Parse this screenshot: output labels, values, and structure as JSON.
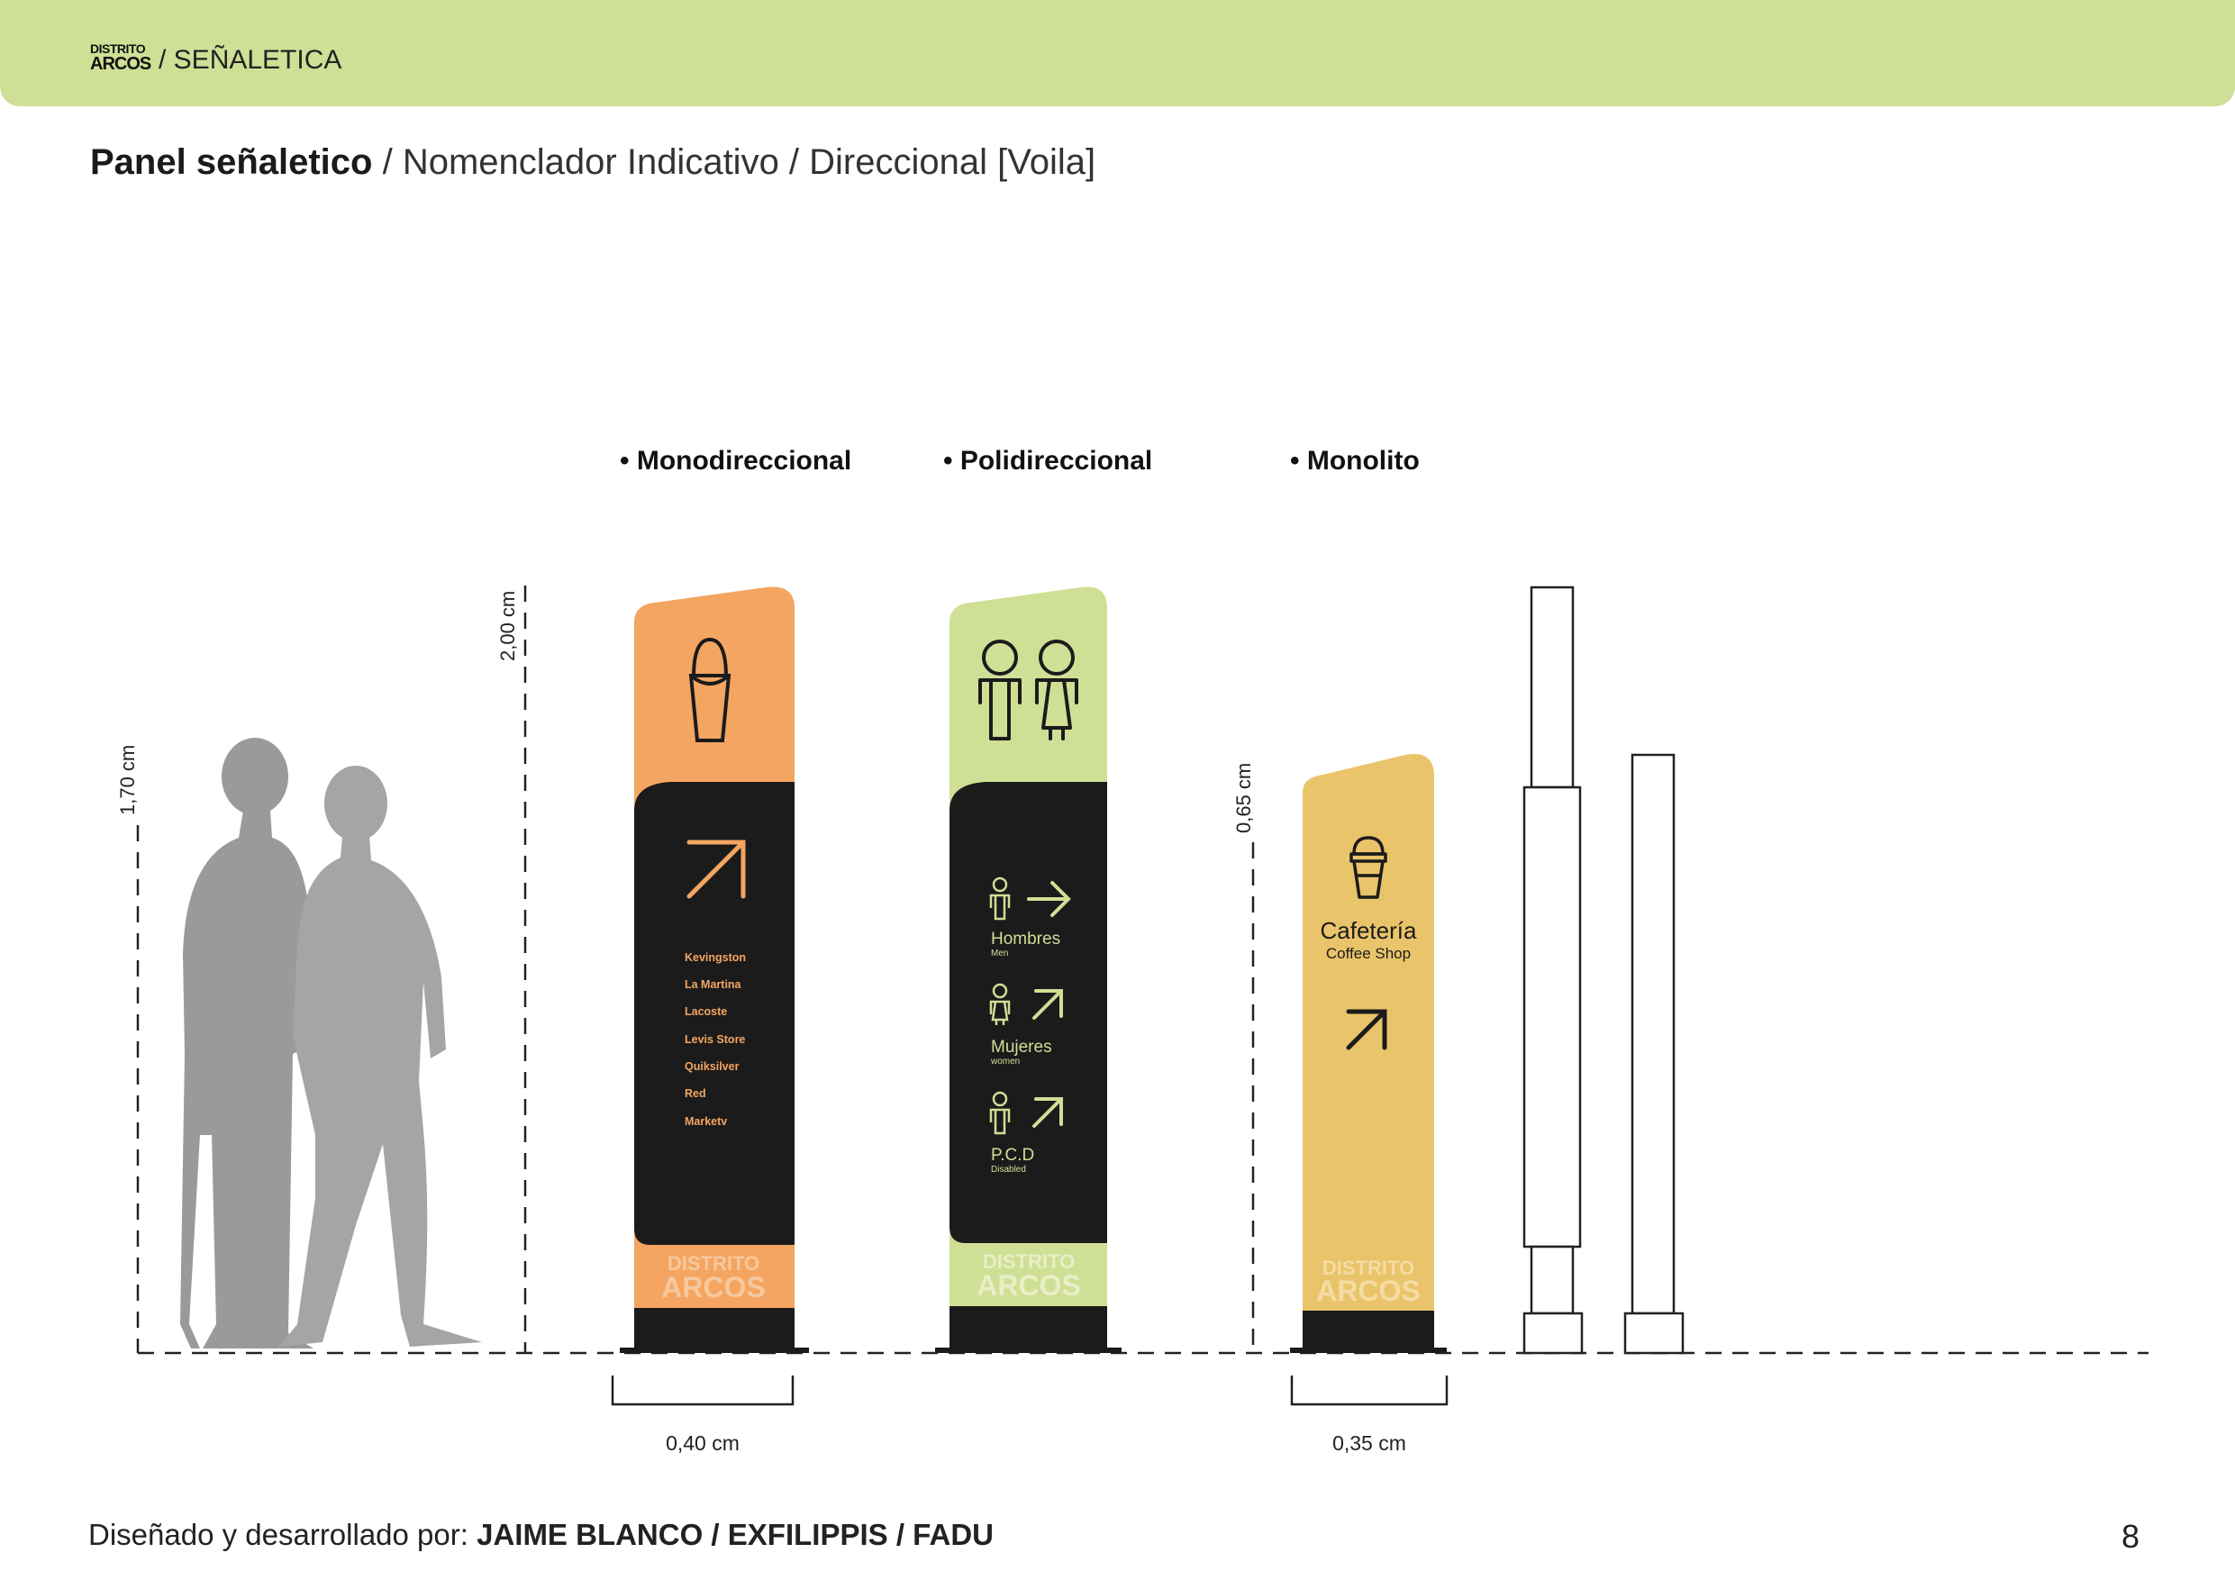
{
  "header": {
    "logo_line1": "DISTRITO",
    "logo_line2": "ARCOS",
    "breadcrumb": "/ SEÑALETICA",
    "bar_color": "#cfdf95"
  },
  "title": {
    "bold": "Panel señaletico",
    "rest": " / Nomenclador Indicativo / Direccional [Voila]"
  },
  "types": {
    "mono": "• Monodireccional",
    "poli": "• Polidireccional",
    "monolito": "• Monolito"
  },
  "dimensions": {
    "human_height": "1,70 cm",
    "panel_height": "2,00 cm",
    "monolito_height": "0,65 cm",
    "mono_width": "0,40 cm",
    "monolito_width": "0,35 cm"
  },
  "mono_sign": {
    "color": "#f4a561",
    "icon": "shopping-bag-icon",
    "arrow": "arrow-up-right-icon",
    "stores": [
      "Kevingston",
      "La Martina",
      "Lacoste",
      "Levis Store",
      "Quiksilver",
      "Red",
      "Marketv"
    ],
    "brand_line1": "DISTRITO",
    "brand_line2": "ARCOS"
  },
  "poli_sign": {
    "color": "#cfdf95",
    "icon": "restroom-icon",
    "entries": [
      {
        "title": "Hombres",
        "subtitle": "Men",
        "icon": "man-icon",
        "arrow": "arrow-right-icon"
      },
      {
        "title": "Mujeres",
        "subtitle": "women",
        "icon": "woman-icon",
        "arrow": "arrow-up-right-icon"
      },
      {
        "title": "P.C.D",
        "subtitle": "Disabled",
        "icon": "person-icon",
        "arrow": "arrow-up-right-icon"
      }
    ],
    "brand_line1": "DISTRITO",
    "brand_line2": "ARCOS"
  },
  "monolito_sign": {
    "color": "#eac46a",
    "icon": "coffee-cup-icon",
    "title": "Cafetería",
    "subtitle": "Coffee Shop",
    "arrow": "arrow-up-right-icon",
    "brand_line1": "DISTRITO",
    "brand_line2": "ARCOS"
  },
  "footer": {
    "credit_prefix": "Diseñado y desarrollado por: ",
    "credit_names": "JAIME BLANCO / EXFILIPPIS / FADU",
    "page_number": "8"
  }
}
